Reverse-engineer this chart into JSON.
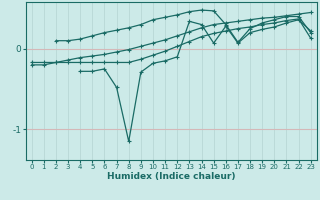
{
  "xlabel": "Humidex (Indice chaleur)",
  "xlim": [
    -0.5,
    23.5
  ],
  "ylim": [
    -1.38,
    0.58
  ],
  "background_color": "#cceae8",
  "grid_color_v": "#b8d8d5",
  "grid_color_h": "#d4b8b8",
  "line_color": "#1a6b65",
  "ytick_vals": [
    0,
    -1
  ],
  "ytick_labels": [
    "0",
    "-1"
  ],
  "xticks": [
    0,
    1,
    2,
    3,
    4,
    5,
    6,
    7,
    8,
    9,
    10,
    11,
    12,
    13,
    14,
    15,
    16,
    17,
    18,
    19,
    20,
    21,
    22,
    23
  ],
  "series": [
    {
      "x": [
        0,
        1,
        2,
        3,
        4,
        5,
        6,
        7,
        8,
        9,
        10,
        11,
        12,
        13,
        14,
        15,
        16,
        17,
        18,
        19,
        20,
        21,
        22,
        23
      ],
      "y": [
        -0.17,
        -0.17,
        -0.17,
        -0.17,
        -0.17,
        -0.17,
        -0.17,
        -0.17,
        -0.17,
        -0.13,
        -0.08,
        -0.03,
        0.03,
        0.09,
        0.15,
        0.19,
        0.22,
        0.25,
        0.27,
        0.3,
        0.32,
        0.35,
        0.37,
        0.13
      ]
    },
    {
      "x": [
        2,
        3,
        4,
        5,
        6,
        7,
        8,
        9,
        10,
        11,
        12,
        13,
        14,
        15,
        16,
        17,
        18,
        19,
        20,
        21,
        22,
        23
      ],
      "y": [
        0.1,
        0.1,
        0.12,
        0.16,
        0.2,
        0.23,
        0.26,
        0.3,
        0.36,
        0.39,
        0.42,
        0.46,
        0.48,
        0.47,
        0.3,
        0.08,
        0.25,
        0.32,
        0.36,
        0.4,
        0.4,
        0.2
      ]
    },
    {
      "x": [
        4,
        5,
        6,
        7,
        8,
        9,
        10,
        11,
        12,
        13,
        14,
        15,
        16,
        17,
        18,
        19,
        20,
        21,
        22,
        23
      ],
      "y": [
        -0.28,
        -0.28,
        -0.25,
        -0.48,
        -1.15,
        -0.29,
        -0.18,
        -0.15,
        -0.1,
        0.34,
        0.3,
        0.07,
        0.28,
        0.07,
        0.2,
        0.24,
        0.27,
        0.32,
        0.36,
        0.22
      ]
    },
    {
      "x": [
        0,
        1,
        2,
        3,
        4,
        5,
        6,
        7,
        8,
        9,
        10,
        11,
        12,
        13,
        14,
        15,
        16,
        17,
        18,
        19,
        20,
        21,
        22,
        23
      ],
      "y": [
        -0.2,
        -0.2,
        -0.17,
        -0.14,
        -0.11,
        -0.09,
        -0.07,
        -0.04,
        -0.01,
        0.03,
        0.07,
        0.11,
        0.16,
        0.21,
        0.26,
        0.3,
        0.32,
        0.34,
        0.36,
        0.38,
        0.39,
        0.41,
        0.43,
        0.45
      ]
    }
  ]
}
